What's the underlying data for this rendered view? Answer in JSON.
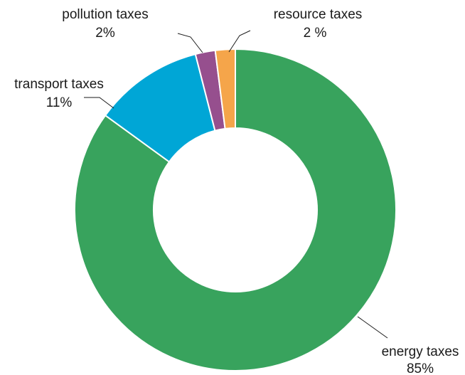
{
  "chart_data": {
    "type": "pie",
    "variant": "donut",
    "start_angle_deg": 0,
    "direction": "clockwise",
    "slices": [
      {
        "key": "energy",
        "label": "energy taxes",
        "value_text": "85%",
        "value": 85,
        "color": "#38a35d"
      },
      {
        "key": "transport",
        "label": "transport taxes",
        "value_text": "11%",
        "value": 11,
        "color": "#00a6d6"
      },
      {
        "key": "pollution",
        "label": "pollution taxes",
        "value_text": "2%",
        "value": 2,
        "color": "#964f8e"
      },
      {
        "key": "resource",
        "label": "resource taxes",
        "value_text": "2 %",
        "value": 2,
        "color": "#f5a54a"
      }
    ]
  }
}
